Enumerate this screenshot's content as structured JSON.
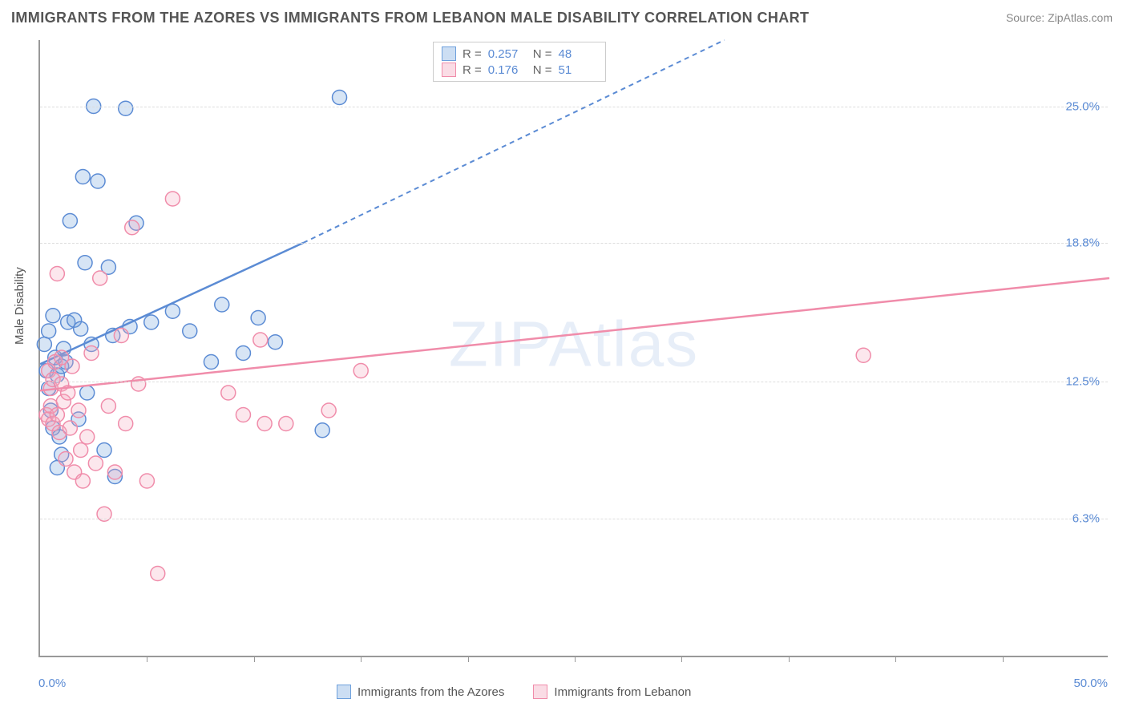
{
  "title": "IMMIGRANTS FROM THE AZORES VS IMMIGRANTS FROM LEBANON MALE DISABILITY CORRELATION CHART",
  "source": "Source: ZipAtlas.com",
  "watermark": "ZIPAtlas",
  "ylabel": "Male Disability",
  "chart": {
    "type": "scatter",
    "xlim": [
      0,
      50
    ],
    "ylim": [
      0,
      28
    ],
    "background_color": "#ffffff",
    "grid_color": "#dddddd",
    "grid_dash": "4 4",
    "axis_color": "#999999",
    "ytick_labels": [
      "6.3%",
      "12.5%",
      "18.8%",
      "25.0%"
    ],
    "ytick_values": [
      6.3,
      12.5,
      18.8,
      25.0
    ],
    "xtick_values": [
      5,
      10,
      15,
      20,
      25,
      30,
      35,
      40,
      45
    ],
    "xtick_left_label": "0.0%",
    "xtick_right_label": "50.0%",
    "marker_radius": 9,
    "marker_stroke_width": 1.5,
    "marker_fill_opacity": 0.28,
    "trend_line_width": 2.5,
    "trend_dash_width": 2,
    "trend_dash_pattern": "6 5",
    "series": [
      {
        "name": "Immigrants from the Azores",
        "color": "#6ea0dc",
        "stroke": "#5b8bd4",
        "R": "0.257",
        "N": "48",
        "trend": {
          "x1": 0,
          "y1": 13.3,
          "x2_solid": 12.3,
          "y2_solid": 18.8,
          "x2_dash": 32,
          "y2_dash": 28
        },
        "points": [
          [
            0.2,
            14.2
          ],
          [
            0.3,
            13.0
          ],
          [
            0.4,
            12.2
          ],
          [
            0.4,
            14.8
          ],
          [
            0.5,
            11.2
          ],
          [
            0.6,
            10.4
          ],
          [
            0.6,
            15.5
          ],
          [
            0.7,
            13.6
          ],
          [
            0.8,
            12.8
          ],
          [
            0.8,
            8.6
          ],
          [
            0.9,
            10.0
          ],
          [
            1.0,
            13.2
          ],
          [
            1.0,
            9.2
          ],
          [
            1.1,
            14.0
          ],
          [
            1.2,
            13.4
          ],
          [
            1.3,
            15.2
          ],
          [
            1.4,
            19.8
          ],
          [
            1.6,
            15.3
          ],
          [
            1.8,
            10.8
          ],
          [
            1.9,
            14.9
          ],
          [
            2.0,
            21.8
          ],
          [
            2.1,
            17.9
          ],
          [
            2.2,
            12.0
          ],
          [
            2.4,
            14.2
          ],
          [
            2.5,
            25.0
          ],
          [
            2.7,
            21.6
          ],
          [
            3.0,
            9.4
          ],
          [
            3.2,
            17.7
          ],
          [
            3.4,
            14.6
          ],
          [
            3.5,
            8.2
          ],
          [
            4.0,
            24.9
          ],
          [
            4.2,
            15.0
          ],
          [
            4.5,
            19.7
          ],
          [
            5.2,
            15.2
          ],
          [
            6.2,
            15.7
          ],
          [
            7.0,
            14.8
          ],
          [
            8.0,
            13.4
          ],
          [
            8.5,
            16.0
          ],
          [
            9.5,
            13.8
          ],
          [
            10.2,
            15.4
          ],
          [
            11.0,
            14.3
          ],
          [
            13.2,
            10.3
          ],
          [
            14.0,
            25.4
          ]
        ]
      },
      {
        "name": "Immigrants from Lebanon",
        "color": "#f4a8bd",
        "stroke": "#f08caa",
        "R": "0.176",
        "N": "51",
        "trend": {
          "x1": 0,
          "y1": 12.1,
          "x2_solid": 50,
          "y2_solid": 17.2,
          "x2_dash": 50,
          "y2_dash": 17.2
        },
        "points": [
          [
            0.3,
            11.0
          ],
          [
            0.4,
            10.8
          ],
          [
            0.4,
            13.0
          ],
          [
            0.5,
            12.2
          ],
          [
            0.5,
            11.4
          ],
          [
            0.6,
            10.6
          ],
          [
            0.6,
            12.6
          ],
          [
            0.7,
            13.4
          ],
          [
            0.8,
            11.0
          ],
          [
            0.8,
            17.4
          ],
          [
            0.9,
            10.2
          ],
          [
            1.0,
            12.4
          ],
          [
            1.0,
            13.6
          ],
          [
            1.1,
            11.6
          ],
          [
            1.2,
            9.0
          ],
          [
            1.3,
            12.0
          ],
          [
            1.4,
            10.4
          ],
          [
            1.5,
            13.2
          ],
          [
            1.6,
            8.4
          ],
          [
            1.8,
            11.2
          ],
          [
            1.9,
            9.4
          ],
          [
            2.0,
            8.0
          ],
          [
            2.2,
            10.0
          ],
          [
            2.4,
            13.8
          ],
          [
            2.6,
            8.8
          ],
          [
            2.8,
            17.2
          ],
          [
            3.0,
            6.5
          ],
          [
            3.2,
            11.4
          ],
          [
            3.5,
            8.4
          ],
          [
            3.8,
            14.6
          ],
          [
            4.0,
            10.6
          ],
          [
            4.3,
            19.5
          ],
          [
            4.6,
            12.4
          ],
          [
            5.0,
            8.0
          ],
          [
            5.5,
            3.8
          ],
          [
            6.2,
            20.8
          ],
          [
            8.8,
            12.0
          ],
          [
            9.5,
            11.0
          ],
          [
            10.3,
            14.4
          ],
          [
            10.5,
            10.6
          ],
          [
            11.5,
            10.6
          ],
          [
            13.5,
            11.2
          ],
          [
            15.0,
            13.0
          ],
          [
            38.5,
            13.7
          ]
        ]
      }
    ]
  },
  "legend_bottom": {
    "items": [
      {
        "swatch": "blue",
        "label": "Immigrants from the Azores"
      },
      {
        "swatch": "pink",
        "label": "Immigrants from Lebanon"
      }
    ]
  },
  "ytick_label_color": "#5b8bd4",
  "ytick_label_fontsize": 15,
  "title_fontsize": 18,
  "title_color": "#555555"
}
